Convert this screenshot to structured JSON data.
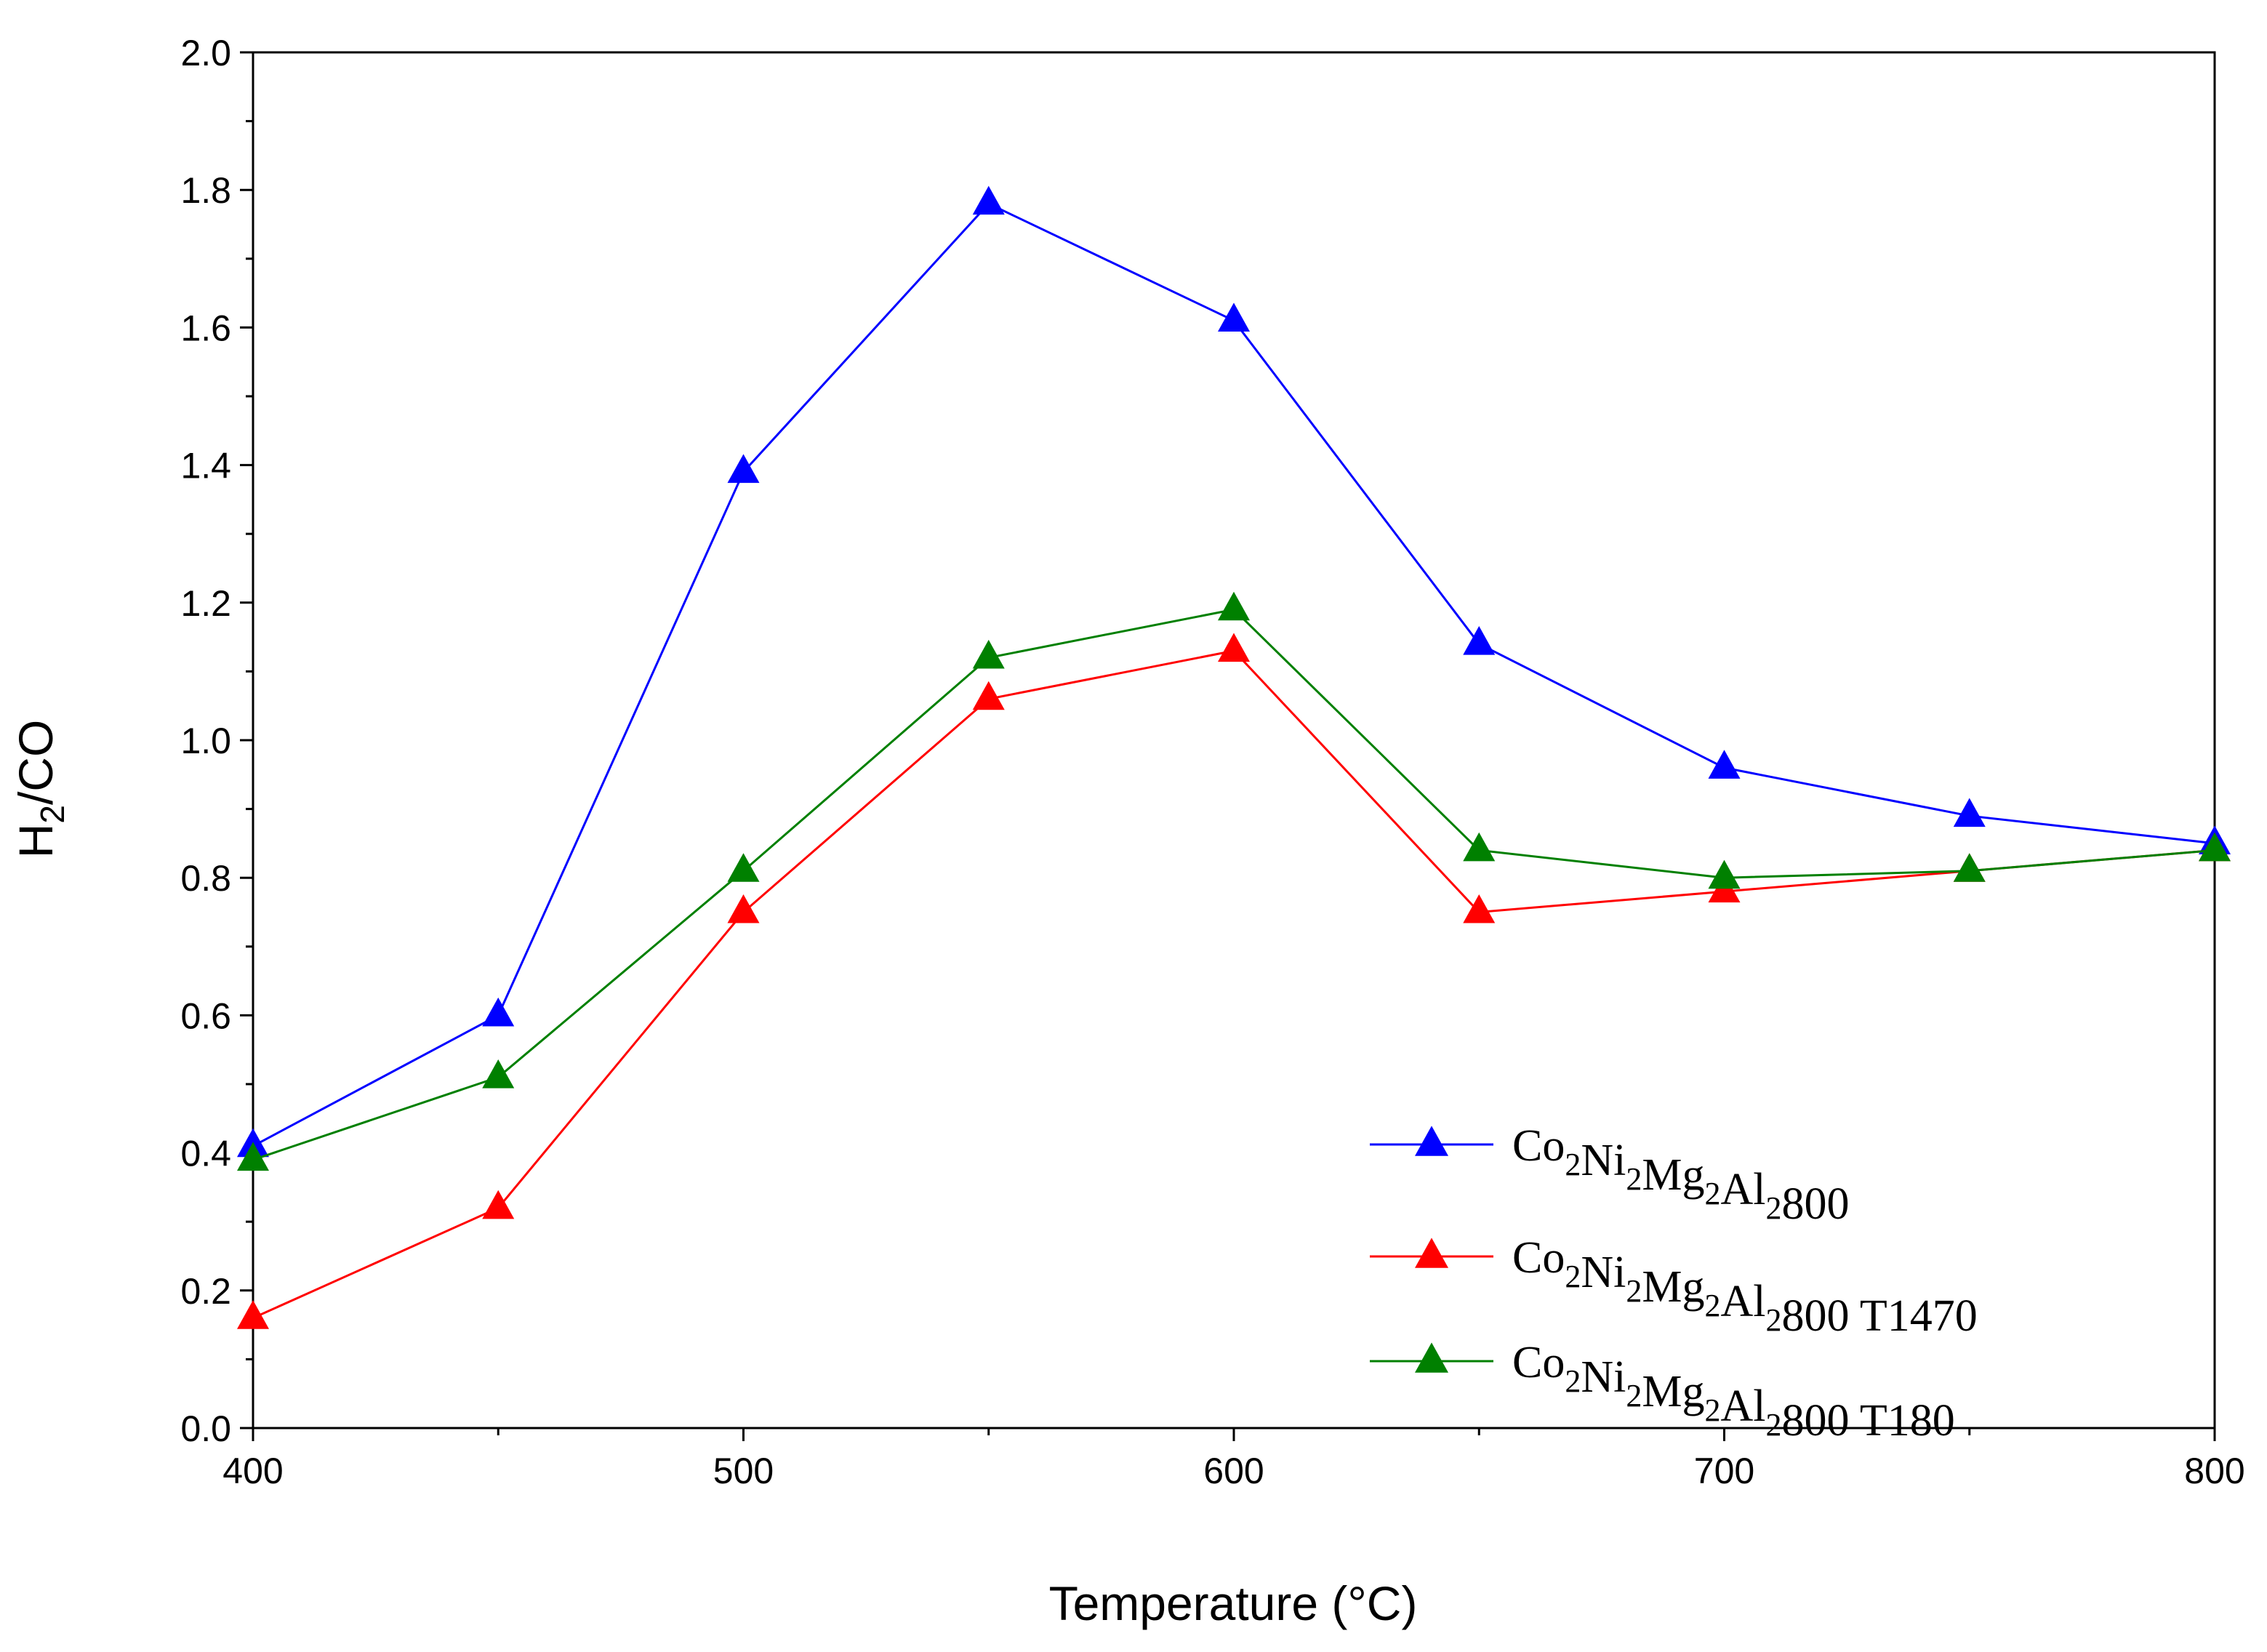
{
  "chart_data": {
    "type": "line",
    "title": "",
    "xlabel": "Temperature (°C)",
    "ylabel_main": "H",
    "ylabel_sub": "2",
    "ylabel_rest": "/CO",
    "xlim": [
      400,
      800
    ],
    "ylim": [
      0.0,
      2.0
    ],
    "xticks": [
      400,
      500,
      600,
      700,
      800
    ],
    "xtick_labels": [
      "400",
      "500",
      "600",
      "700",
      "800"
    ],
    "yticks": [
      0.0,
      0.2,
      0.4,
      0.6,
      0.8,
      1.0,
      1.2,
      1.4,
      1.6,
      1.8,
      2.0
    ],
    "ytick_labels": [
      "0.0",
      "0.2",
      "0.4",
      "0.6",
      "0.8",
      "1.0",
      "1.2",
      "1.4",
      "1.6",
      "1.8",
      "2.0"
    ],
    "grid": false,
    "legend_position": "bottom-right",
    "x": [
      400,
      450,
      500,
      550,
      600,
      650,
      700,
      750,
      800
    ],
    "series": [
      {
        "name": "Co2Ni2Mg2Al2800",
        "color": "#0000ff",
        "marker": "triangle",
        "legend_parts": [
          [
            "Co",
            false
          ],
          [
            "2",
            true
          ],
          [
            "Ni",
            false
          ],
          [
            "2",
            true
          ],
          [
            "Mg",
            false
          ],
          [
            "2",
            true
          ],
          [
            "Al",
            false
          ],
          [
            "2",
            true
          ],
          [
            "800",
            false
          ]
        ],
        "values": [
          0.41,
          0.6,
          1.39,
          1.78,
          1.61,
          1.14,
          0.96,
          0.89,
          0.85
        ]
      },
      {
        "name": "Co2Ni2Mg2Al2800 T1470",
        "color": "#ff0000",
        "marker": "triangle",
        "legend_parts": [
          [
            "Co",
            false
          ],
          [
            "2",
            true
          ],
          [
            "Ni",
            false
          ],
          [
            "2",
            true
          ],
          [
            "Mg",
            false
          ],
          [
            "2",
            true
          ],
          [
            "Al",
            false
          ],
          [
            "2",
            true
          ],
          [
            "800 T1470",
            false
          ]
        ],
        "values": [
          0.16,
          0.32,
          0.75,
          1.06,
          1.13,
          0.75,
          0.78,
          0.81,
          0.84
        ]
      },
      {
        "name": "Co2Ni2Mg2Al2800 T180",
        "color": "#008000",
        "marker": "triangle",
        "legend_parts": [
          [
            "Co",
            false
          ],
          [
            "2",
            true
          ],
          [
            "Ni",
            false
          ],
          [
            "2",
            true
          ],
          [
            "Mg",
            false
          ],
          [
            "2",
            true
          ],
          [
            "Al",
            false
          ],
          [
            "2",
            true
          ],
          [
            "800 T180",
            false
          ]
        ],
        "values": [
          0.39,
          0.51,
          0.81,
          1.12,
          1.19,
          0.84,
          0.8,
          0.81,
          0.84
        ]
      }
    ]
  }
}
